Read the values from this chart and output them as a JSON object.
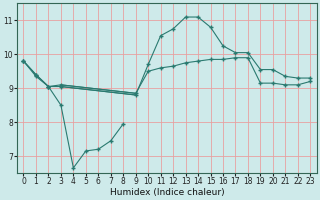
{
  "xlabel": "Humidex (Indice chaleur)",
  "bg_color": "#ceeaea",
  "grid_color": "#e8a0a0",
  "line_color": "#2a7a70",
  "xlim": [
    -0.5,
    23.5
  ],
  "ylim": [
    6.5,
    11.5
  ],
  "yticks": [
    7,
    8,
    9,
    10,
    11
  ],
  "xticks": [
    0,
    1,
    2,
    3,
    4,
    5,
    6,
    7,
    8,
    9,
    10,
    11,
    12,
    13,
    14,
    15,
    16,
    17,
    18,
    19,
    20,
    21,
    22,
    23
  ],
  "line1_x": [
    0,
    1,
    2,
    3,
    4,
    5,
    6,
    7,
    8,
    9,
    10,
    11,
    12,
    13,
    14,
    15,
    16,
    17,
    18,
    19,
    20,
    21,
    22,
    23
  ],
  "line1_y": [
    9.8,
    9.4,
    9.05,
    8.5,
    6.65,
    7.15,
    7.2,
    7.45,
    7.95,
    null,
    null,
    null,
    null,
    null,
    null,
    null,
    null,
    null,
    null,
    null,
    null,
    null,
    null,
    null
  ],
  "line2_x": [
    0,
    1,
    2,
    3,
    9,
    10,
    11,
    12,
    13,
    14,
    15,
    16,
    17,
    18,
    19,
    20,
    21,
    22,
    23
  ],
  "line2_y": [
    9.8,
    9.4,
    9.05,
    9.05,
    8.8,
    9.7,
    10.55,
    10.75,
    11.1,
    11.1,
    10.8,
    10.25,
    10.05,
    10.05,
    9.55,
    9.55,
    9.35,
    9.3,
    9.3
  ],
  "line3_x": [
    0,
    1,
    2,
    3,
    9,
    10,
    11,
    12,
    13,
    14,
    15,
    16,
    17,
    18,
    19,
    20,
    21,
    22,
    23
  ],
  "line3_y": [
    9.8,
    9.35,
    9.05,
    9.1,
    8.85,
    9.5,
    9.6,
    9.65,
    9.75,
    9.8,
    9.85,
    9.85,
    9.9,
    9.9,
    9.15,
    9.15,
    9.1,
    9.1,
    9.2
  ],
  "line4_x": [
    3,
    9
  ],
  "line4_y": [
    9.1,
    8.85
  ],
  "line5_x": [
    3,
    9
  ],
  "line5_y": [
    9.05,
    8.8
  ]
}
